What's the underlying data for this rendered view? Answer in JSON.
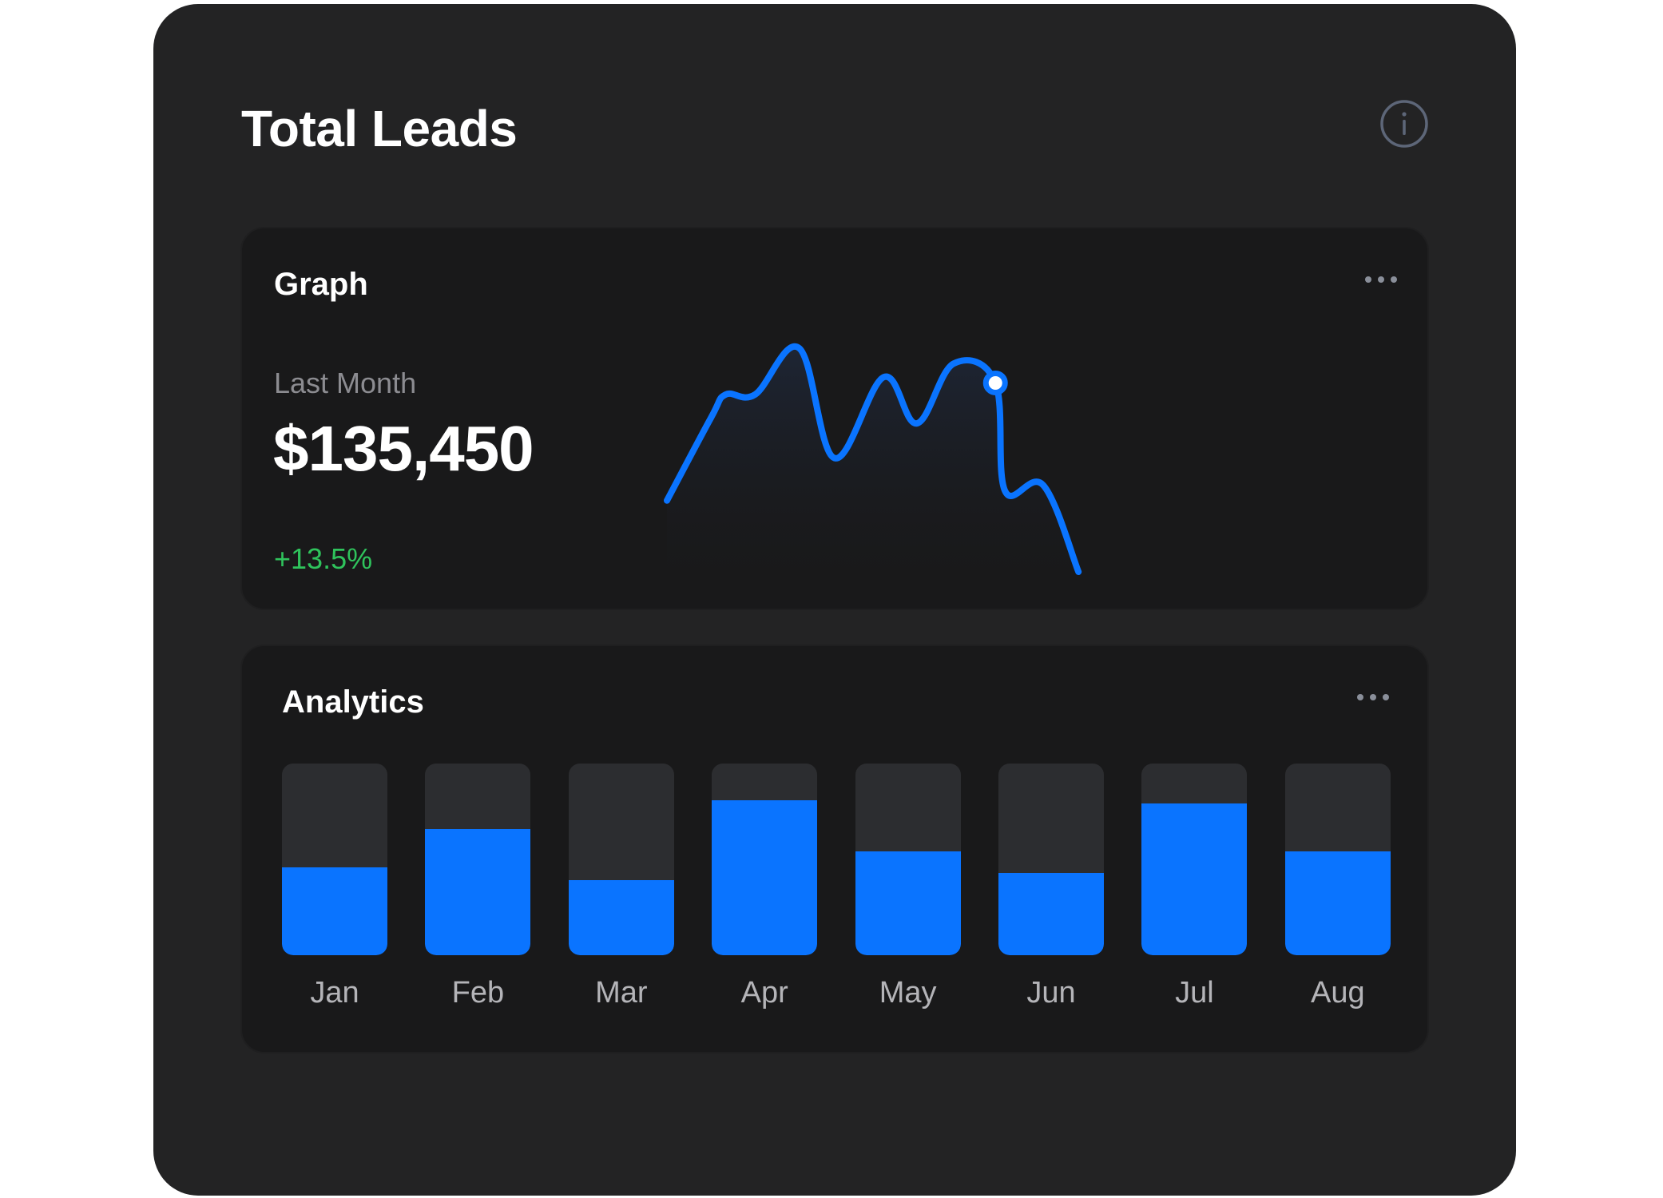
{
  "widget": {
    "title": "Total Leads"
  },
  "graph_card": {
    "title": "Graph",
    "period_label": "Last Month",
    "value": "$135,450",
    "change": "+13.5%"
  },
  "analytics_card": {
    "title": "Analytics"
  },
  "icons": {
    "info": "info-icon",
    "more": "more-horizontal-icon"
  },
  "colors": {
    "background": "#232324",
    "card": "#19191a",
    "accent": "#0a74ff",
    "positive": "#2fc35c",
    "track": "#2c2d30"
  },
  "chart_data": [
    {
      "type": "line",
      "title": "",
      "series": [
        {
          "values": [
            12,
            55,
            67,
            67,
            91,
            34,
            76,
            52,
            83,
            73,
            17,
            20,
            -25
          ],
          "highlight_index": 9
        }
      ]
    },
    {
      "type": "bar",
      "title": "",
      "categories": [
        "Jan",
        "Feb",
        "Mar",
        "Apr",
        "May",
        "Jun",
        "Jul",
        "Aug"
      ],
      "values": [
        0.46,
        0.66,
        0.39,
        0.81,
        0.54,
        0.43,
        0.79,
        0.54
      ],
      "ylim": [
        0,
        1
      ]
    }
  ]
}
